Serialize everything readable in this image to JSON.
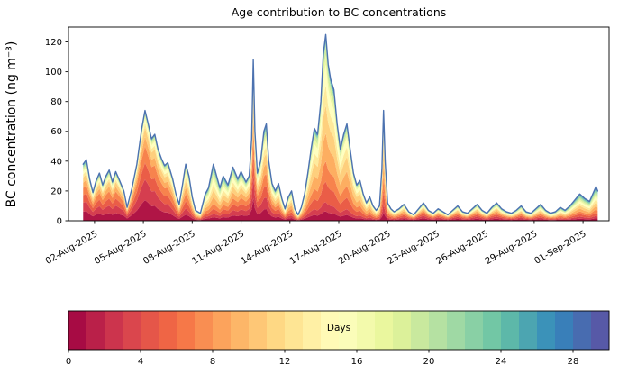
{
  "figure": {
    "background": "#ffffff"
  },
  "chart_data": {
    "type": "area",
    "subtype": "stacked_area_with_total_line",
    "title": "Age contribution to BC concentrations",
    "xlabel": "",
    "ylabel": "BC concentration (ng m⁻³)",
    "x_encoding": "fractional day of August 2025 (32 = 01-Sep-2025)",
    "xlim": [
      0.4,
      33.6
    ],
    "ylim": [
      0,
      130
    ],
    "x_ticks": [
      2,
      5,
      8,
      11,
      14,
      17,
      20,
      23,
      26,
      29,
      32
    ],
    "x_tick_labels": [
      "02-Aug-2025",
      "05-Aug-2025",
      "08-Aug-2025",
      "11-Aug-2025",
      "14-Aug-2025",
      "17-Aug-2025",
      "20-Aug-2025",
      "23-Aug-2025",
      "26-Aug-2025",
      "29-Aug-2025",
      "01-Sep-2025"
    ],
    "y_ticks": [
      0,
      20,
      40,
      60,
      80,
      100,
      120
    ],
    "grid": false,
    "line_color": "#4c72b0",
    "total_series_name": "Total BC concentration",
    "x": [
      1.3,
      1.5,
      1.7,
      1.9,
      2.1,
      2.3,
      2.5,
      2.7,
      2.9,
      3.1,
      3.3,
      3.5,
      3.8,
      4.0,
      4.3,
      4.6,
      4.9,
      5.1,
      5.3,
      5.5,
      5.7,
      5.9,
      6.1,
      6.3,
      6.5,
      6.8,
      7.0,
      7.2,
      7.4,
      7.6,
      7.8,
      8.0,
      8.2,
      8.5,
      8.8,
      9.0,
      9.3,
      9.5,
      9.7,
      9.9,
      10.2,
      10.5,
      10.8,
      11.0,
      11.3,
      11.5,
      11.65,
      11.75,
      11.85,
      12.0,
      12.2,
      12.4,
      12.55,
      12.7,
      12.9,
      13.1,
      13.3,
      13.5,
      13.7,
      13.9,
      14.1,
      14.3,
      14.5,
      14.7,
      14.9,
      15.1,
      15.3,
      15.5,
      15.7,
      15.9,
      16.05,
      16.2,
      16.35,
      16.5,
      16.7,
      16.9,
      17.1,
      17.3,
      17.5,
      17.7,
      17.9,
      18.1,
      18.3,
      18.5,
      18.7,
      18.9,
      19.1,
      19.3,
      19.5,
      19.65,
      19.75,
      19.85,
      20.0,
      20.2,
      20.4,
      20.7,
      21.0,
      21.3,
      21.6,
      21.9,
      22.2,
      22.5,
      22.8,
      23.1,
      23.4,
      23.7,
      24.0,
      24.3,
      24.6,
      24.9,
      25.2,
      25.5,
      25.8,
      26.1,
      26.4,
      26.7,
      27.0,
      27.3,
      27.6,
      27.9,
      28.2,
      28.5,
      28.8,
      29.1,
      29.4,
      29.7,
      30.0,
      30.3,
      30.6,
      30.9,
      31.2,
      31.5,
      31.8,
      32.1,
      32.4,
      32.6,
      32.8,
      32.9
    ],
    "total": [
      38,
      41,
      28,
      19,
      27,
      32,
      24,
      30,
      34,
      26,
      33,
      28,
      20,
      9,
      22,
      38,
      62,
      74,
      65,
      55,
      58,
      48,
      42,
      37,
      39,
      28,
      18,
      11,
      24,
      38,
      30,
      16,
      7,
      5,
      18,
      22,
      38,
      30,
      22,
      30,
      24,
      36,
      28,
      33,
      26,
      30,
      55,
      108,
      60,
      32,
      40,
      60,
      65,
      40,
      25,
      20,
      25,
      15,
      8,
      16,
      20,
      8,
      4,
      9,
      18,
      32,
      48,
      62,
      58,
      80,
      112,
      125,
      105,
      95,
      88,
      65,
      48,
      58,
      65,
      48,
      32,
      24,
      27,
      18,
      12,
      16,
      10,
      7,
      10,
      35,
      74,
      40,
      12,
      8,
      6,
      8,
      11,
      6,
      4,
      8,
      12,
      7,
      5,
      8,
      6,
      4,
      7,
      10,
      6,
      5,
      8,
      11,
      7,
      5,
      9,
      12,
      8,
      6,
      5,
      7,
      10,
      6,
      5,
      8,
      11,
      7,
      5,
      6,
      9,
      7,
      10,
      14,
      18,
      15,
      13,
      18,
      23,
      20
    ],
    "age_bins": [
      "0-4",
      "4-8",
      "8-12",
      "12-16",
      "16-20",
      "20-24",
      "24-28",
      "28-32"
    ],
    "age_fraction_keyframes": [
      {
        "x": 1.0,
        "fractions": [
          0.32,
          0.26,
          0.18,
          0.11,
          0.06,
          0.04,
          0.02,
          0.01
        ]
      },
      {
        "x": 3.0,
        "fractions": [
          0.3,
          0.28,
          0.2,
          0.1,
          0.06,
          0.03,
          0.02,
          0.01
        ]
      },
      {
        "x": 5.2,
        "fractions": [
          0.38,
          0.3,
          0.17,
          0.08,
          0.04,
          0.02,
          0.007,
          0.003
        ]
      },
      {
        "x": 7.0,
        "fractions": [
          0.25,
          0.28,
          0.22,
          0.13,
          0.07,
          0.03,
          0.01,
          0.01
        ]
      },
      {
        "x": 9.3,
        "fractions": [
          0.12,
          0.18,
          0.24,
          0.2,
          0.13,
          0.07,
          0.04,
          0.02
        ]
      },
      {
        "x": 11.75,
        "fractions": [
          0.28,
          0.26,
          0.2,
          0.13,
          0.07,
          0.03,
          0.02,
          0.01
        ]
      },
      {
        "x": 13.5,
        "fractions": [
          0.2,
          0.22,
          0.22,
          0.16,
          0.1,
          0.05,
          0.03,
          0.02
        ]
      },
      {
        "x": 16.2,
        "fractions": [
          0.1,
          0.22,
          0.3,
          0.22,
          0.1,
          0.03,
          0.02,
          0.01
        ]
      },
      {
        "x": 17.5,
        "fractions": [
          0.12,
          0.24,
          0.3,
          0.2,
          0.08,
          0.03,
          0.02,
          0.01
        ]
      },
      {
        "x": 19.75,
        "fractions": [
          0.15,
          0.25,
          0.28,
          0.18,
          0.08,
          0.03,
          0.02,
          0.01
        ]
      },
      {
        "x": 22.0,
        "fractions": [
          0.28,
          0.25,
          0.18,
          0.12,
          0.08,
          0.05,
          0.03,
          0.01
        ]
      },
      {
        "x": 25.0,
        "fractions": [
          0.25,
          0.24,
          0.19,
          0.13,
          0.09,
          0.05,
          0.03,
          0.02
        ]
      },
      {
        "x": 28.0,
        "fractions": [
          0.22,
          0.22,
          0.19,
          0.14,
          0.1,
          0.07,
          0.04,
          0.02
        ]
      },
      {
        "x": 31.0,
        "fractions": [
          0.16,
          0.2,
          0.21,
          0.17,
          0.11,
          0.08,
          0.05,
          0.02
        ]
      },
      {
        "x": 33.0,
        "fractions": [
          0.14,
          0.19,
          0.21,
          0.18,
          0.12,
          0.09,
          0.05,
          0.02
        ]
      }
    ],
    "colormap": {
      "name": "Spectral",
      "anchors": [
        "#9e0142",
        "#d53e4f",
        "#f46d43",
        "#fdae61",
        "#fee08b",
        "#ffffbf",
        "#e6f598",
        "#abdda4",
        "#66c2a5",
        "#3288bd",
        "#5e4fa2"
      ]
    },
    "colorbar": {
      "label": "Days",
      "ticks": [
        0,
        4,
        8,
        12,
        16,
        20,
        24,
        28
      ],
      "vmin": 0,
      "vmax": 30,
      "segments": 30,
      "orientation": "horizontal"
    }
  }
}
